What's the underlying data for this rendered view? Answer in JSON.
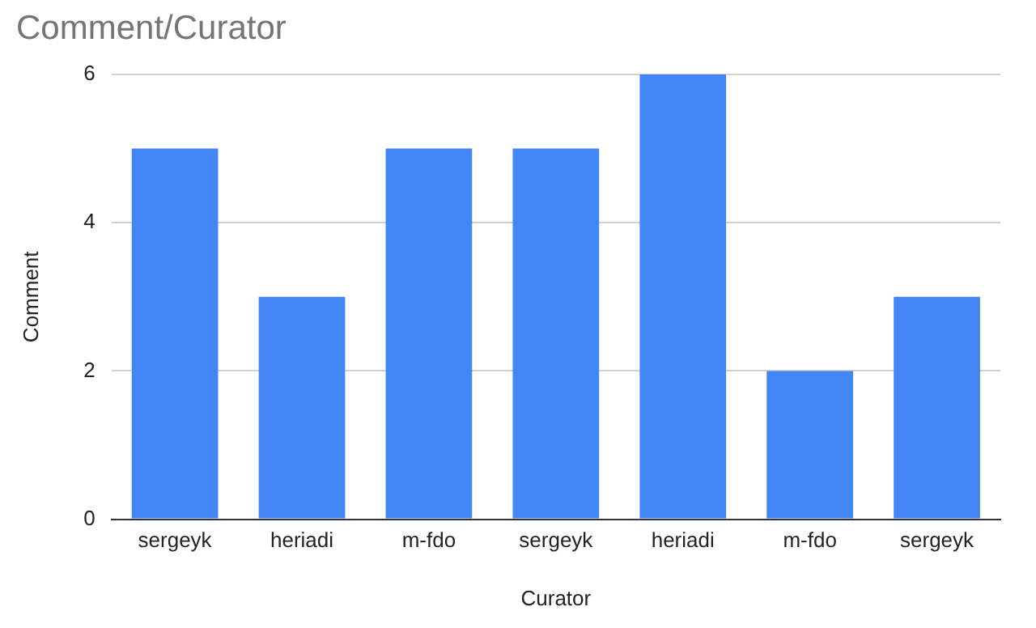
{
  "chart_data": {
    "type": "bar",
    "title": "Comment/Curator",
    "xlabel": "Curator",
    "ylabel": "Comment",
    "categories": [
      "sergeyk",
      "heriadi",
      "m-fdo",
      "sergeyk",
      "heriadi",
      "m-fdo",
      "sergeyk"
    ],
    "values": [
      5,
      3,
      5,
      5,
      6,
      2,
      3
    ],
    "color": "#4285f4",
    "ylim": [
      0,
      6
    ],
    "yticks": [
      0,
      2,
      4,
      6
    ],
    "grid": "y",
    "legend": false
  }
}
